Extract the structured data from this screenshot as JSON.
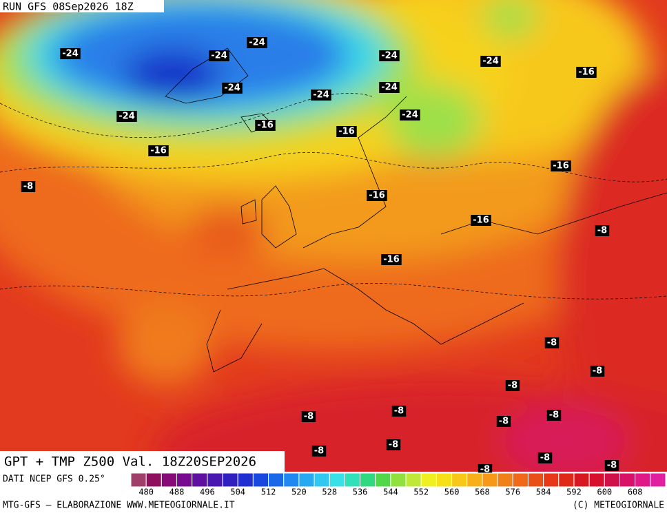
{
  "header": {
    "run": "RUN GFS 08Sep2026 18Z",
    "caption": "GPT + TMP Z500 Val. 18Z20SEP2026"
  },
  "contour_labels": [
    "-24",
    "-24",
    "-24",
    "-24",
    "-24",
    "-24",
    "-24",
    "-24",
    "-24",
    "-24",
    "-16",
    "-16",
    "-16",
    "-16",
    "-16",
    "-16",
    "-16",
    "-16",
    "-8",
    "-8",
    "-8",
    "-8",
    "-8",
    "-8",
    "-8",
    "-8",
    "-8",
    "-8",
    "-8",
    "-8",
    "-8",
    "-8"
  ],
  "scale": {
    "source": "DATI NCEP GFS 0.25°",
    "ticks": [
      480,
      488,
      496,
      504,
      512,
      520,
      528,
      536,
      544,
      552,
      560,
      568,
      576,
      584,
      592,
      600,
      608
    ],
    "colors": [
      "#a0406a",
      "#901060",
      "#880a78",
      "#780a90",
      "#6010a0",
      "#4818b0",
      "#3020c0",
      "#2030d0",
      "#1848e0",
      "#1868e8",
      "#2088f0",
      "#28a8f0",
      "#30c8f0",
      "#38e0e8",
      "#30e0b8",
      "#30d880",
      "#50d848",
      "#90e040",
      "#c0e838",
      "#f0f020",
      "#f8e018",
      "#f8c818",
      "#f8b018",
      "#f89818",
      "#f08018",
      "#f06818",
      "#e85018",
      "#e83818",
      "#e02818",
      "#d81820",
      "#d81030",
      "#d01048",
      "#d81068",
      "#e01888",
      "#e020a0"
    ]
  },
  "footer": {
    "left": "MTG-GFS – ELABORAZIONE WWW.METEOGIORNALE.IT",
    "right": "(C) METEOGIORNALE"
  }
}
